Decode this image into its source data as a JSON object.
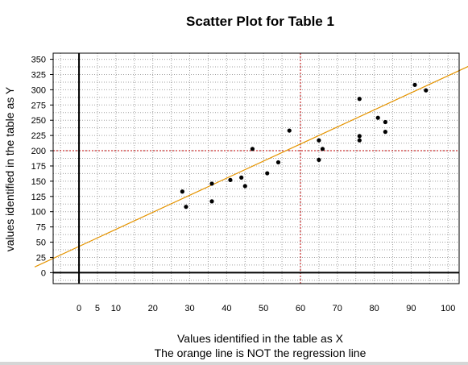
{
  "chart_data": {
    "type": "scatter",
    "title": "Scatter Plot for Table 1",
    "xlabel": "Values identified in the table as X",
    "xlabel_note": "The orange line is NOT the regression line",
    "ylabel": "values identified in the table as Y",
    "xlim": [
      -7,
      103
    ],
    "ylim": [
      -18,
      360
    ],
    "x_ticks": [
      0,
      5,
      10,
      20,
      30,
      40,
      50,
      60,
      70,
      80,
      90,
      100
    ],
    "y_ticks": [
      0,
      25,
      50,
      75,
      100,
      125,
      150,
      175,
      200,
      225,
      250,
      275,
      300,
      325,
      350
    ],
    "grid": true,
    "points": [
      {
        "x": 28,
        "y": 133
      },
      {
        "x": 29,
        "y": 108
      },
      {
        "x": 36,
        "y": 146
      },
      {
        "x": 36,
        "y": 117
      },
      {
        "x": 41,
        "y": 152
      },
      {
        "x": 44,
        "y": 156
      },
      {
        "x": 45,
        "y": 142
      },
      {
        "x": 47,
        "y": 203
      },
      {
        "x": 51,
        "y": 163
      },
      {
        "x": 54,
        "y": 181
      },
      {
        "x": 57,
        "y": 233
      },
      {
        "x": 65,
        "y": 217
      },
      {
        "x": 65,
        "y": 185
      },
      {
        "x": 66,
        "y": 203
      },
      {
        "x": 76,
        "y": 285
      },
      {
        "x": 76,
        "y": 224
      },
      {
        "x": 76,
        "y": 217
      },
      {
        "x": 81,
        "y": 254
      },
      {
        "x": 83,
        "y": 247
      },
      {
        "x": 83,
        "y": 231
      },
      {
        "x": 91,
        "y": 308
      },
      {
        "x": 94,
        "y": 299
      }
    ],
    "reference_lines": {
      "vertical_x": 60,
      "horizontal_y": 200
    },
    "orange_line": {
      "intercept": 43,
      "slope": 2.8
    },
    "colors": {
      "points": "#000000",
      "grid": "#a0a0a0",
      "reference_lines": "#c00000",
      "orange_line": "#e59400",
      "axis": "#000000"
    }
  }
}
